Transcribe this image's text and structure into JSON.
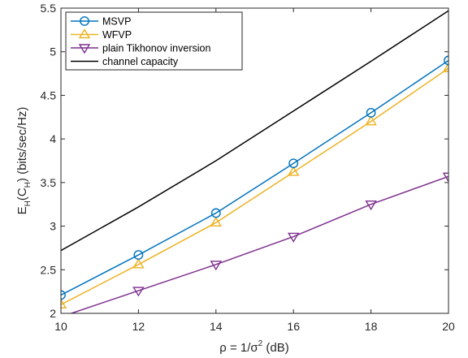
{
  "chart_data": {
    "type": "line",
    "x": [
      10,
      12,
      14,
      16,
      18,
      20
    ],
    "xlim": [
      10,
      20
    ],
    "ylim": [
      2,
      5.5
    ],
    "xticks": [
      "10",
      "12",
      "14",
      "16",
      "18",
      "20"
    ],
    "yticks": [
      "2",
      "2.5",
      "3",
      "3.5",
      "4",
      "4.5",
      "5",
      "5.5"
    ],
    "xlabel": {
      "prefix": "ρ = 1/σ",
      "sup": "2",
      "suffix": " (dB)"
    },
    "ylabel": {
      "p1": "E",
      "s1": "H",
      "p2": "(C",
      "s2": "H",
      "p3": ") (bits/sec/Hz)"
    },
    "grid": false,
    "legend_position": "top-left",
    "series": [
      {
        "name": "MSVP",
        "color": "#0072BD",
        "marker": "circle",
        "values": [
          2.21,
          2.67,
          3.15,
          3.72,
          4.3,
          4.9
        ]
      },
      {
        "name": "WFVP",
        "color": "#EDB120",
        "marker": "triangle-up",
        "values": [
          2.1,
          2.56,
          3.04,
          3.62,
          4.2,
          4.81
        ]
      },
      {
        "name": "plain Tikhonov inversion",
        "color": "#7E2F8E",
        "marker": "triangle-down",
        "values": [
          1.96,
          2.26,
          2.56,
          2.88,
          3.25,
          3.57
        ]
      },
      {
        "name": "channel capacity",
        "color": "#000000",
        "marker": "none",
        "x": [
          10,
          12,
          14,
          16,
          18,
          20
        ],
        "values": [
          2.72,
          3.22,
          3.75,
          4.32,
          4.89,
          5.47
        ]
      }
    ]
  }
}
